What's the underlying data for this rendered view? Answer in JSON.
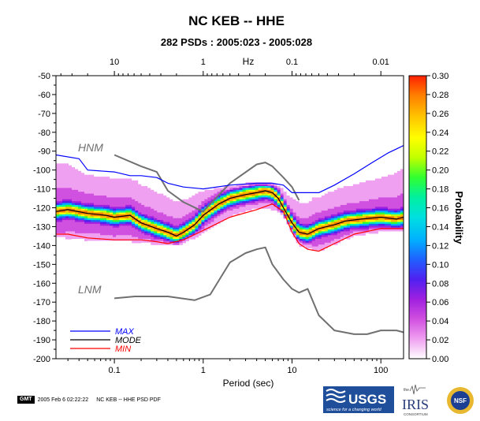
{
  "chart_data": {
    "type": "heatmap",
    "title": "NC KEB -- HHE",
    "subtitle": "282 PSDs : 2005:023 - 2005:028",
    "xlabel": "Period (sec)",
    "top_axis_unit": "Hz",
    "ylabel": "",
    "xscale": "log",
    "xlim": [
      0.022,
      180
    ],
    "ylim": [
      -200,
      -50
    ],
    "x_ticks": [
      0.1,
      1,
      10,
      100
    ],
    "x_tick_labels": [
      "0.1",
      "1",
      "10",
      "100"
    ],
    "top_ticks": [
      10,
      1,
      0.1,
      0.01
    ],
    "top_tick_labels": [
      "10",
      "1",
      "0.1",
      "0.01"
    ],
    "y_ticks": [
      -50,
      -60,
      -70,
      -80,
      -90,
      -100,
      -110,
      -120,
      -130,
      -140,
      -150,
      -160,
      -170,
      -180,
      -190,
      -200
    ],
    "y_tick_labels": [
      "-50",
      "-60",
      "-70",
      "-80",
      "-90",
      "-100",
      "-110",
      "-120",
      "-130",
      "-140",
      "-150",
      "-160",
      "-170",
      "-180",
      "-190",
      "-200"
    ],
    "colorbar": {
      "label": "Probability",
      "range": [
        0,
        0.3
      ],
      "ticks": [
        0,
        0.02,
        0.04,
        0.06,
        0.08,
        0.1,
        0.12,
        0.14,
        0.16,
        0.18,
        0.2,
        0.22,
        0.24,
        0.26,
        0.28,
        0.3
      ],
      "tick_labels": [
        "0.00",
        "0.02",
        "0.04",
        "0.06",
        "0.08",
        "0.10",
        "0.12",
        "0.14",
        "0.16",
        "0.18",
        "0.20",
        "0.22",
        "0.24",
        "0.26",
        "0.28",
        "0.30"
      ],
      "colors": [
        "#ffffff",
        "#f0a0f0",
        "#d050e0",
        "#a020e0",
        "#5020f0",
        "#2060ff",
        "#00b0ff",
        "#00e0e0",
        "#00f0a0",
        "#30ff30",
        "#c0ff00",
        "#ffff00",
        "#ffc000",
        "#ff8000",
        "#ff2000"
      ]
    },
    "annotations": [
      {
        "text": "HNM",
        "x": 0.036,
        "y": -88
      },
      {
        "text": "LNM",
        "x": 0.036,
        "y": -167
      }
    ],
    "legend": {
      "placement": "bottom-left",
      "items": [
        {
          "label": "MAX",
          "color": "#0000ff"
        },
        {
          "label": "MODE",
          "color": "#000000"
        },
        {
          "label": "MIN",
          "color": "#ff0000"
        }
      ]
    },
    "series": [
      {
        "name": "MAX",
        "color": "#0000ff",
        "x": [
          0.022,
          0.04,
          0.05,
          0.1,
          0.15,
          0.2,
          0.3,
          0.4,
          0.6,
          1,
          2,
          4,
          6,
          8,
          10,
          15,
          20,
          30,
          50,
          80,
          120,
          180
        ],
        "y": [
          -92,
          -94,
          -100,
          -101,
          -103,
          -103,
          -104,
          -107,
          -109,
          -110,
          -108,
          -107,
          -107,
          -108,
          -112,
          -112,
          -112,
          -108,
          -102,
          -96,
          -91,
          -87
        ]
      },
      {
        "name": "MODE",
        "color": "#000000",
        "x": [
          0.022,
          0.03,
          0.05,
          0.08,
          0.1,
          0.15,
          0.2,
          0.3,
          0.4,
          0.5,
          0.6,
          0.8,
          1,
          1.5,
          2,
          3,
          4,
          5,
          6,
          7,
          8,
          10,
          12,
          15,
          20,
          30,
          40,
          60,
          100,
          150,
          180
        ],
        "y": [
          -122,
          -121,
          -123,
          -124,
          -125,
          -124,
          -128,
          -131,
          -133,
          -135,
          -133,
          -129,
          -124,
          -118,
          -115,
          -113,
          -112,
          -111,
          -112,
          -115,
          -120,
          -128,
          -133,
          -134,
          -131,
          -129,
          -127,
          -126,
          -125,
          -126,
          -125
        ]
      },
      {
        "name": "MIN",
        "color": "#ff0000",
        "x": [
          0.022,
          0.03,
          0.05,
          0.1,
          0.15,
          0.2,
          0.3,
          0.4,
          0.6,
          1,
          2,
          4,
          6,
          8,
          10,
          12,
          15,
          20,
          30,
          50,
          100,
          180
        ],
        "y": [
          -134,
          -134,
          -136,
          -137,
          -137,
          -137,
          -138,
          -139,
          -137,
          -132,
          -125,
          -121,
          -118,
          -122,
          -133,
          -139,
          -142,
          -143,
          -139,
          -134,
          -131,
          -131
        ]
      },
      {
        "name": "HNM",
        "color": "#707070",
        "x": [
          0.1,
          0.2,
          0.3,
          0.4,
          0.6,
          1,
          2,
          4,
          5,
          6,
          8,
          10,
          12
        ],
        "y": [
          -92,
          -98,
          -101,
          -111,
          -117,
          -122,
          -107,
          -97,
          -96,
          -98,
          -104,
          -109,
          -116
        ]
      },
      {
        "name": "LNM",
        "color": "#707070",
        "x": [
          0.1,
          0.17,
          0.4,
          0.8,
          1.2,
          2,
          3,
          4,
          5,
          6,
          8,
          10,
          12,
          15,
          20,
          30,
          50,
          70,
          100,
          150,
          180
        ],
        "y": [
          -168,
          -167,
          -167,
          -169,
          -166,
          -149,
          -144,
          -142,
          -141,
          -150,
          -158,
          -163,
          -165,
          -163,
          -177,
          -185,
          -187,
          -187,
          -185,
          -185,
          -186
        ]
      }
    ],
    "density_band": [
      {
        "x": 0.022,
        "low": -136,
        "high": -90
      },
      {
        "x": 0.05,
        "low": -138,
        "high": -100
      },
      {
        "x": 0.2,
        "low": -139,
        "high": -103
      },
      {
        "x": 0.5,
        "low": -140,
        "high": -108
      },
      {
        "x": 1,
        "low": -134,
        "high": -109
      },
      {
        "x": 2,
        "low": -127,
        "high": -108
      },
      {
        "x": 4,
        "low": -122,
        "high": -106
      },
      {
        "x": 8,
        "low": -124,
        "high": -108
      },
      {
        "x": 12,
        "low": -140,
        "high": -112
      },
      {
        "x": 20,
        "low": -144,
        "high": -112
      },
      {
        "x": 50,
        "low": -135,
        "high": -102
      },
      {
        "x": 100,
        "low": -133,
        "high": -96
      },
      {
        "x": 180,
        "low": -133,
        "high": -87
      }
    ]
  },
  "footer": {
    "gmt_label": "GMT",
    "timestamp": "2005 Feb  6 02:22:22",
    "caption": "NC KEB -- HHE PSD PDF"
  },
  "logos": {
    "usgs": "USGS",
    "usgs_tagline": "science for a changing world",
    "iris": "IRIS",
    "iris_tagline": "CONSORTIUM",
    "iris_prefix": "the",
    "nsf": "NSF"
  }
}
